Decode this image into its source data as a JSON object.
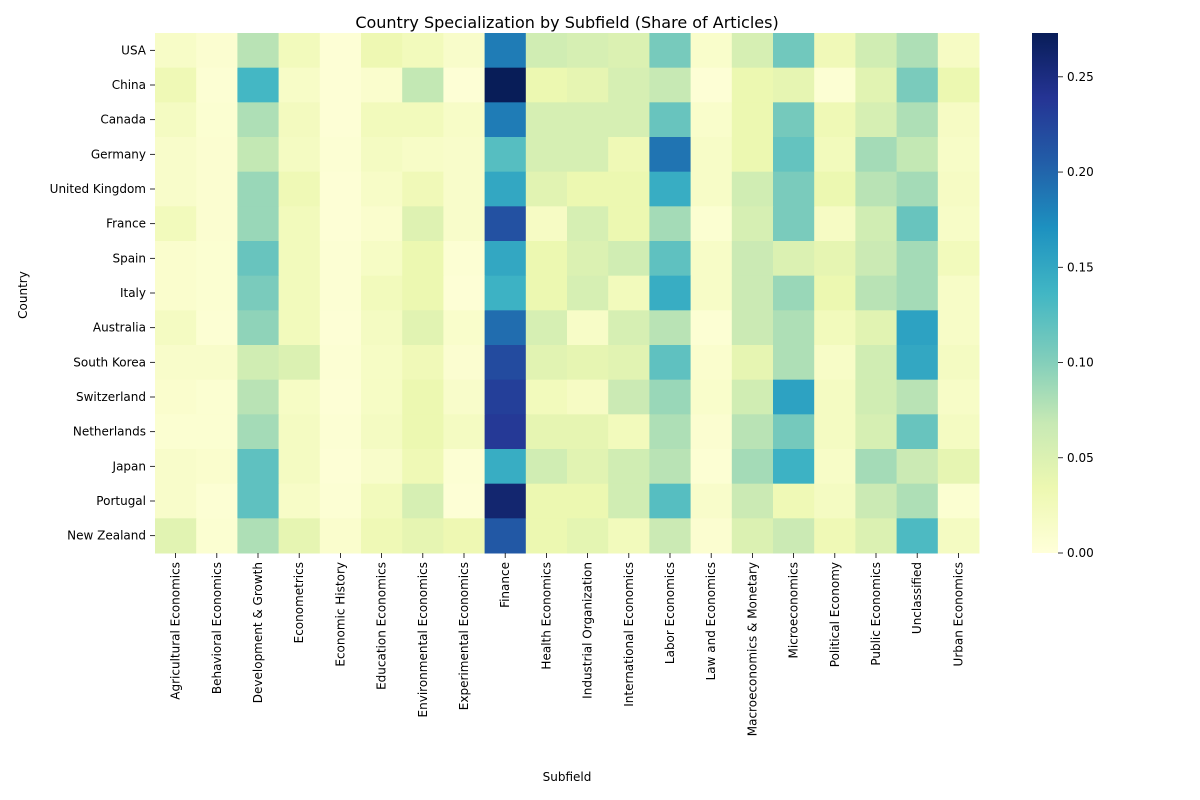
{
  "chart_data": {
    "type": "heatmap",
    "title": "Country Specialization by Subfield (Share of Articles)",
    "xlabel": "Subfield",
    "ylabel": "Country",
    "rows": [
      "USA",
      "China",
      "Canada",
      "Germany",
      "United Kingdom",
      "France",
      "Spain",
      "Italy",
      "Australia",
      "South Korea",
      "Switzerland",
      "Netherlands",
      "Japan",
      "Portugal",
      "New Zealand"
    ],
    "columns": [
      "Agricultural Economics",
      "Behavioral Economics",
      "Development & Growth",
      "Econometrics",
      "Economic History",
      "Education Economics",
      "Environmental Economics",
      "Experimental Economics",
      "Finance",
      "Health Economics",
      "Industrial Organization",
      "International Economics",
      "Labor Economics",
      "Law and Economics",
      "Macroeconomics & Monetary",
      "Microeconomics",
      "Political Economy",
      "Public Economics",
      "Unclassified",
      "Urban Economics"
    ],
    "values": [
      [
        0.015,
        0.008,
        0.075,
        0.025,
        0.003,
        0.032,
        0.025,
        0.013,
        0.185,
        0.06,
        0.055,
        0.05,
        0.107,
        0.012,
        0.055,
        0.11,
        0.028,
        0.06,
        0.08,
        0.018
      ],
      [
        0.03,
        0.005,
        0.135,
        0.015,
        0.003,
        0.01,
        0.07,
        0.003,
        0.273,
        0.035,
        0.04,
        0.055,
        0.068,
        0.003,
        0.035,
        0.04,
        0.005,
        0.045,
        0.105,
        0.035
      ],
      [
        0.02,
        0.007,
        0.08,
        0.022,
        0.003,
        0.025,
        0.025,
        0.015,
        0.185,
        0.055,
        0.055,
        0.055,
        0.115,
        0.012,
        0.035,
        0.108,
        0.03,
        0.055,
        0.08,
        0.018
      ],
      [
        0.013,
        0.008,
        0.07,
        0.02,
        0.005,
        0.02,
        0.015,
        0.013,
        0.125,
        0.055,
        0.055,
        0.03,
        0.19,
        0.015,
        0.035,
        0.117,
        0.025,
        0.085,
        0.07,
        0.015
      ],
      [
        0.013,
        0.008,
        0.09,
        0.03,
        0.003,
        0.015,
        0.028,
        0.013,
        0.15,
        0.045,
        0.035,
        0.035,
        0.145,
        0.015,
        0.06,
        0.105,
        0.035,
        0.075,
        0.085,
        0.018
      ],
      [
        0.025,
        0.008,
        0.09,
        0.025,
        0.003,
        0.01,
        0.048,
        0.013,
        0.215,
        0.018,
        0.055,
        0.035,
        0.085,
        0.007,
        0.055,
        0.105,
        0.018,
        0.06,
        0.115,
        0.015
      ],
      [
        0.01,
        0.007,
        0.115,
        0.025,
        0.005,
        0.017,
        0.035,
        0.005,
        0.15,
        0.035,
        0.05,
        0.06,
        0.12,
        0.015,
        0.065,
        0.05,
        0.04,
        0.065,
        0.085,
        0.025
      ],
      [
        0.01,
        0.007,
        0.105,
        0.025,
        0.005,
        0.025,
        0.035,
        0.003,
        0.14,
        0.035,
        0.055,
        0.025,
        0.145,
        0.015,
        0.065,
        0.09,
        0.035,
        0.075,
        0.085,
        0.015
      ],
      [
        0.02,
        0.005,
        0.095,
        0.025,
        0.003,
        0.02,
        0.045,
        0.012,
        0.195,
        0.055,
        0.015,
        0.055,
        0.075,
        0.005,
        0.065,
        0.08,
        0.025,
        0.045,
        0.155,
        0.015
      ],
      [
        0.013,
        0.013,
        0.06,
        0.05,
        0.005,
        0.017,
        0.028,
        0.008,
        0.22,
        0.045,
        0.04,
        0.045,
        0.12,
        0.01,
        0.04,
        0.08,
        0.015,
        0.06,
        0.15,
        0.02
      ],
      [
        0.01,
        0.007,
        0.075,
        0.017,
        0.003,
        0.017,
        0.035,
        0.013,
        0.23,
        0.025,
        0.018,
        0.065,
        0.09,
        0.012,
        0.06,
        0.155,
        0.02,
        0.06,
        0.075,
        0.015
      ],
      [
        0.007,
        0.007,
        0.085,
        0.02,
        0.005,
        0.02,
        0.035,
        0.02,
        0.235,
        0.04,
        0.04,
        0.025,
        0.08,
        0.008,
        0.075,
        0.108,
        0.02,
        0.055,
        0.115,
        0.02
      ],
      [
        0.013,
        0.01,
        0.12,
        0.02,
        0.003,
        0.013,
        0.03,
        0.005,
        0.145,
        0.06,
        0.045,
        0.06,
        0.075,
        0.005,
        0.085,
        0.14,
        0.015,
        0.085,
        0.065,
        0.04
      ],
      [
        0.013,
        0.005,
        0.12,
        0.015,
        0.005,
        0.025,
        0.055,
        0.003,
        0.26,
        0.035,
        0.035,
        0.06,
        0.125,
        0.013,
        0.065,
        0.03,
        0.02,
        0.065,
        0.08,
        0.007
      ],
      [
        0.045,
        0.007,
        0.08,
        0.04,
        0.01,
        0.03,
        0.04,
        0.032,
        0.21,
        0.035,
        0.042,
        0.025,
        0.065,
        0.008,
        0.05,
        0.065,
        0.03,
        0.05,
        0.13,
        0.02
      ]
    ],
    "vmin": 0,
    "vmax": 0.273,
    "colorbar_ticks": [
      "0.00",
      "0.05",
      "0.10",
      "0.15",
      "0.20",
      "0.25"
    ],
    "colormap": "YlGnBu",
    "colormap_stops": [
      "#ffffd9",
      "#edf8b1",
      "#c7e9b4",
      "#7fcdbb",
      "#41b6c4",
      "#1d91c0",
      "#225ea8",
      "#253494",
      "#081d58"
    ],
    "grid": false
  }
}
